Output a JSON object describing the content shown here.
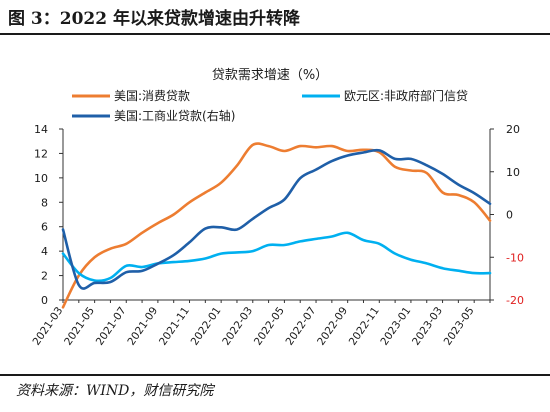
{
  "figure": {
    "title": "图 3：2022 年以来贷款增速由升转降",
    "source": "资料来源：WIND，财信研究院"
  },
  "chart_data": {
    "type": "line",
    "title": "贷款需求增速（%）",
    "x": [
      "2021-03",
      "2021-04",
      "2021-05",
      "2021-06",
      "2021-07",
      "2021-08",
      "2021-09",
      "2021-10",
      "2021-11",
      "2021-12",
      "2022-01",
      "2022-02",
      "2022-03",
      "2022-04",
      "2022-05",
      "2022-06",
      "2022-07",
      "2022-08",
      "2022-09",
      "2022-10",
      "2022-11",
      "2022-12",
      "2023-01",
      "2023-02",
      "2023-03",
      "2023-04",
      "2023-05",
      "2023-06"
    ],
    "x_tick_labels": [
      "2021-03",
      "2021-05",
      "2021-07",
      "2021-09",
      "2021-11",
      "2022-01",
      "2022-03",
      "2022-05",
      "2022-07",
      "2022-09",
      "2022-11",
      "2023-01",
      "2023-03",
      "2023-05"
    ],
    "y_left": {
      "ylim": [
        0,
        14
      ],
      "ticks": [
        0,
        2,
        4,
        6,
        8,
        10,
        12,
        14
      ]
    },
    "y_right": {
      "ylim": [
        -20,
        20
      ],
      "ticks": [
        -20,
        -10,
        0,
        10,
        20
      ]
    },
    "series": [
      {
        "name": "美国:消费贷款",
        "axis": "left",
        "color": "#ED7D31",
        "values": [
          -0.6,
          2.0,
          3.5,
          4.2,
          4.6,
          5.5,
          6.3,
          7.0,
          8.0,
          8.8,
          9.6,
          11.0,
          12.7,
          12.6,
          12.2,
          12.6,
          12.5,
          12.6,
          12.2,
          12.3,
          12.1,
          10.9,
          10.6,
          10.4,
          8.8,
          8.6,
          8.0,
          6.5
        ]
      },
      {
        "name": "欧元区:非政府部门信贷",
        "axis": "left",
        "color": "#00B0F0",
        "values": [
          3.8,
          2.2,
          1.6,
          1.8,
          2.8,
          2.7,
          3.0,
          3.1,
          3.2,
          3.4,
          3.8,
          3.9,
          4.0,
          4.5,
          4.5,
          4.8,
          5.0,
          5.2,
          5.5,
          4.9,
          4.6,
          3.8,
          3.3,
          3.0,
          2.6,
          2.4,
          2.2,
          2.2
        ]
      },
      {
        "name": "美国:工商业贷款(右轴)",
        "axis": "right",
        "color": "#1F5FA8",
        "values": [
          -3.5,
          -16.5,
          -16.0,
          -15.8,
          -13.5,
          -13.2,
          -11.5,
          -9.5,
          -6.5,
          -3.3,
          -3.0,
          -3.5,
          -1.0,
          1.5,
          3.5,
          8.5,
          10.5,
          12.5,
          13.8,
          14.5,
          15.0,
          13.0,
          13.0,
          11.5,
          9.5,
          7.0,
          5.0,
          2.5
        ]
      }
    ],
    "legend_placement": "top",
    "grid": false,
    "right_axis_negative_tick_color": "#E02020"
  }
}
